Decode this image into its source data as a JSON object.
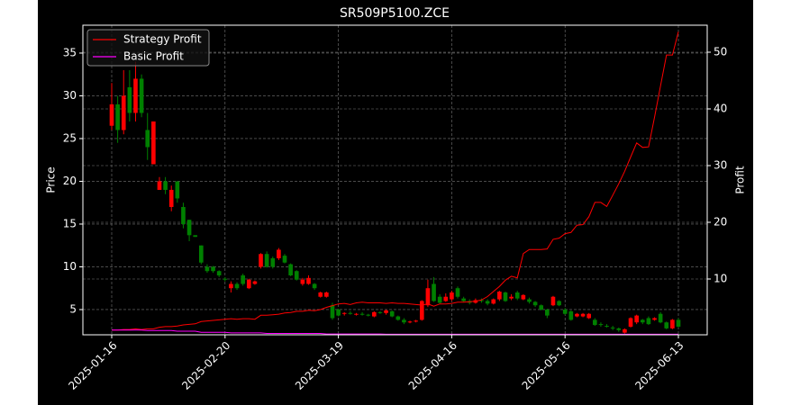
{
  "chart_data": {
    "type": "candlestick",
    "title": "SR509P5100.ZCE",
    "ylabel": "Price",
    "y2label": "Profit",
    "x": [
      "2025-01-16",
      "2025-01-17",
      "2025-01-20",
      "2025-01-21",
      "2025-01-22",
      "2025-01-23",
      "2025-01-24",
      "2025-01-27",
      "2025-02-05",
      "2025-02-06",
      "2025-02-07",
      "2025-02-10",
      "2025-02-11",
      "2025-02-12",
      "2025-02-13",
      "2025-02-14",
      "2025-02-17",
      "2025-02-18",
      "2025-02-19",
      "2025-02-20",
      "2025-02-21",
      "2025-02-24",
      "2025-02-25",
      "2025-02-26",
      "2025-02-27",
      "2025-02-28",
      "2025-03-03",
      "2025-03-04",
      "2025-03-05",
      "2025-03-06",
      "2025-03-07",
      "2025-03-10",
      "2025-03-11",
      "2025-03-12",
      "2025-03-13",
      "2025-03-14",
      "2025-03-17",
      "2025-03-18",
      "2025-03-19",
      "2025-03-20",
      "2025-03-21",
      "2025-03-24",
      "2025-03-25",
      "2025-03-26",
      "2025-03-27",
      "2025-03-28",
      "2025-03-31",
      "2025-04-01",
      "2025-04-02",
      "2025-04-03",
      "2025-04-07",
      "2025-04-08",
      "2025-04-09",
      "2025-04-10",
      "2025-04-11",
      "2025-04-14",
      "2025-04-15",
      "2025-04-16",
      "2025-04-17",
      "2025-04-18",
      "2025-04-21",
      "2025-04-22",
      "2025-04-23",
      "2025-04-24",
      "2025-04-25",
      "2025-04-28",
      "2025-04-29",
      "2025-04-30",
      "2025-05-06",
      "2025-05-07",
      "2025-05-08",
      "2025-05-09",
      "2025-05-12",
      "2025-05-13",
      "2025-05-14",
      "2025-05-15",
      "2025-05-16",
      "2025-05-19",
      "2025-05-20",
      "2025-05-21",
      "2025-05-22",
      "2025-05-23",
      "2025-05-26",
      "2025-05-27",
      "2025-05-28",
      "2025-05-29",
      "2025-05-30",
      "2025-06-03",
      "2025-06-04",
      "2025-06-05",
      "2025-06-06",
      "2025-06-09",
      "2025-06-10",
      "2025-06-11",
      "2025-06-12",
      "2025-06-13"
    ],
    "open": [
      26.5,
      29,
      26,
      31,
      28,
      32,
      26,
      22,
      19,
      20,
      17,
      20,
      17,
      15.5,
      13.7,
      12.5,
      10,
      10,
      9.5,
      8.6,
      7.5,
      8,
      9,
      7.5,
      8,
      10,
      11.5,
      11,
      11,
      11.3,
      10.3,
      9.5,
      8,
      8,
      8,
      6.5,
      6.5,
      5.5,
      5,
      4.5,
      4.6,
      4.4,
      4.5,
      4.4,
      4.2,
      4.7,
      4.6,
      4.8,
      4.2,
      3.8,
      3.5,
      3.6,
      3.8,
      5.5,
      8,
      6.5,
      6,
      6.2,
      7.5,
      6.3,
      6,
      5.8,
      6.1,
      6,
      5.7,
      6.2,
      7,
      6.3,
      7,
      6.2,
      6.2,
      5.9,
      5.5,
      5,
      5.5,
      6,
      5,
      4.8,
      4.2,
      4.2,
      4.0,
      3.8,
      3.3,
      3.1,
      2.9,
      2.8,
      2.3,
      3,
      3.5,
      3.8,
      4,
      3.8,
      4.5,
      3.5,
      2.8,
      3.8
    ],
    "high": [
      31.5,
      30,
      33,
      33,
      34,
      32.5,
      28,
      27,
      20.5,
      20.5,
      19.5,
      20,
      17.5,
      15.5,
      13.7,
      12.5,
      10.3,
      10.1,
      9.6,
      8.8,
      8.3,
      8.2,
      9.2,
      8.6,
      8.4,
      11.6,
      11.8,
      11.2,
      12.2,
      11.5,
      10.4,
      9.6,
      8.7,
      9,
      8.1,
      7.1,
      7.1,
      5.8,
      5.1,
      4.7,
      4.8,
      4.6,
      4.7,
      4.5,
      4.8,
      4.8,
      5,
      4.9,
      4.3,
      4.0,
      3.7,
      3.8,
      6.1,
      8.5,
      8.8,
      6.8,
      6.9,
      7.2,
      7.7,
      6.5,
      6.2,
      6.3,
      6.3,
      6.2,
      6.3,
      7.2,
      7.1,
      6.8,
      7.2,
      6.8,
      6.4,
      6,
      5.6,
      5.1,
      6.6,
      6.1,
      5.2,
      4.9,
      4.6,
      4.6,
      4.6,
      4.0,
      3.5,
      3.3,
      3.1,
      2.9,
      2.8,
      4.1,
      4.4,
      3.9,
      4.2,
      4.1,
      4.7,
      3.6,
      3.9,
      4.0
    ],
    "low": [
      26,
      24.5,
      25.5,
      27,
      27,
      27.5,
      22.5,
      22,
      19,
      18.5,
      16.5,
      17.5,
      14.5,
      13,
      13.5,
      10.3,
      9.3,
      9.3,
      8.8,
      8.3,
      7,
      7.3,
      7.8,
      7.4,
      7.9,
      9.8,
      9.9,
      9.8,
      10.8,
      10.4,
      8.9,
      8.4,
      7.8,
      7.9,
      7.3,
      6.4,
      6.4,
      3.8,
      4.2,
      4.3,
      4.4,
      4.3,
      4.3,
      4.2,
      4.1,
      4.5,
      4.4,
      4.1,
      3.7,
      3.3,
      3.4,
      3.5,
      3.7,
      5.3,
      5.9,
      5.7,
      5.9,
      6,
      6.3,
      5.9,
      5.6,
      5.7,
      5.8,
      5.5,
      5.6,
      6,
      5.9,
      6.1,
      6.1,
      6.1,
      5.7,
      5.3,
      4.9,
      4,
      5.4,
      5.4,
      4.4,
      3.7,
      4.1,
      4.1,
      3.9,
      3.1,
      3.0,
      2.9,
      2.6,
      2.4,
      2.2,
      2.9,
      3.3,
      3.3,
      3.2,
      3.7,
      3.4,
      2.7,
      2.7,
      2.9
    ],
    "close": [
      29,
      26,
      30,
      28,
      32,
      28,
      24,
      27,
      20,
      19,
      19,
      18,
      15,
      13.7,
      13.5,
      10.5,
      9.5,
      9.5,
      9,
      8.5,
      8,
      7.5,
      8,
      8.5,
      8.3,
      11.5,
      10,
      10,
      12,
      10.5,
      9,
      8.5,
      8.5,
      8.7,
      7.5,
      7,
      7,
      4,
      4.3,
      4.6,
      4.5,
      4.5,
      4.4,
      4.3,
      4.7,
      4.6,
      4.9,
      4.2,
      3.8,
      3.5,
      3.6,
      3.7,
      6,
      7.5,
      6,
      5.8,
      6.5,
      7,
      6.5,
      6,
      5.8,
      6.1,
      6,
      5.7,
      6.2,
      7.1,
      6,
      6.5,
      6.3,
      6.7,
      5.9,
      5.5,
      5,
      4.3,
      6.5,
      5.5,
      4.5,
      3.8,
      4.5,
      4.5,
      4.5,
      3.2,
      3.2,
      3.0,
      2.8,
      2.6,
      2.7,
      4,
      4.3,
      3.5,
      3.3,
      4,
      3.5,
      2.8,
      3.8,
      3.0
    ],
    "up_color": "#ff0000",
    "down_color": "#008000",
    "series": [
      {
        "name": "Strategy Profit",
        "color": "#ff0000",
        "axis": "y2",
        "values": [
          1.0,
          1.0,
          1.1,
          1.1,
          1.2,
          1.1,
          1.2,
          1.2,
          1.5,
          1.6,
          1.6,
          1.7,
          1.9,
          2.0,
          2.1,
          2.5,
          2.6,
          2.7,
          2.8,
          2.9,
          3.0,
          2.9,
          3.0,
          3.0,
          2.9,
          3.6,
          3.6,
          3.7,
          3.8,
          4.0,
          4.1,
          4.3,
          4.3,
          4.5,
          4.4,
          4.6,
          5.0,
          5.3,
          5.6,
          5.7,
          5.5,
          5.8,
          5.9,
          5.8,
          5.8,
          5.8,
          5.7,
          5.8,
          5.7,
          5.7,
          5.6,
          5.5,
          5.4,
          5.6,
          5.2,
          5.6,
          5.6,
          5.7,
          5.9,
          5.9,
          6.0,
          6.1,
          6.3,
          6.9,
          7.8,
          8.7,
          9.8,
          10.5,
          10.2,
          14.5,
          15.2,
          15.2,
          15.2,
          15.3,
          17.0,
          17.2,
          18.0,
          18.2,
          19.5,
          19.6,
          21.0,
          23.5,
          23.5,
          22.8,
          24.8,
          26.8,
          29.0,
          31.5,
          34.0,
          33.2,
          33.3,
          38.5,
          44.0,
          49.5,
          49.5,
          53.6
        ]
      },
      {
        "name": "Basic Profit",
        "color": "#ff00ff",
        "axis": "y2",
        "values": [
          1.0,
          1.0,
          1.0,
          1.0,
          1.0,
          1.0,
          0.9,
          0.9,
          0.9,
          0.9,
          0.9,
          0.8,
          0.8,
          0.8,
          0.8,
          0.6,
          0.6,
          0.6,
          0.6,
          0.6,
          0.5,
          0.5,
          0.5,
          0.5,
          0.5,
          0.5,
          0.4,
          0.4,
          0.4,
          0.4,
          0.4,
          0.4,
          0.4,
          0.4,
          0.4,
          0.4,
          0.3,
          0.3,
          0.3,
          0.3,
          0.3,
          0.3,
          0.3,
          0.3,
          0.3,
          0.3,
          0.25,
          0.25,
          0.25,
          0.25,
          0.25,
          0.25,
          0.25,
          0.25,
          0.25,
          0.25,
          0.25,
          0.25,
          0.25,
          0.25,
          0.25,
          0.25,
          0.25,
          0.25,
          0.25,
          0.25,
          0.25,
          0.25,
          0.25,
          0.25,
          0.25,
          0.25,
          0.25,
          0.25,
          0.25,
          0.25,
          0.25,
          0.25,
          0.25,
          0.25,
          0.25,
          0.25,
          0.25,
          0.25,
          0.25,
          0.25,
          0.25,
          0.25,
          0.25,
          0.25,
          0.25,
          0.25,
          0.25,
          0.25,
          0.25,
          0.25
        ]
      }
    ],
    "ylim": [
      2.05,
      38.26
    ],
    "yticks": [
      5,
      10,
      15,
      20,
      25,
      30,
      35
    ],
    "y2lim": [
      0.16,
      54.76
    ],
    "y2ticks": [
      10,
      20,
      30,
      40,
      50
    ],
    "xticks": [
      "2025-01-16",
      "2025-02-20",
      "2025-03-19",
      "2025-04-16",
      "2025-05-16",
      "2025-06-13"
    ],
    "grid": true,
    "legend": "upper left"
  }
}
